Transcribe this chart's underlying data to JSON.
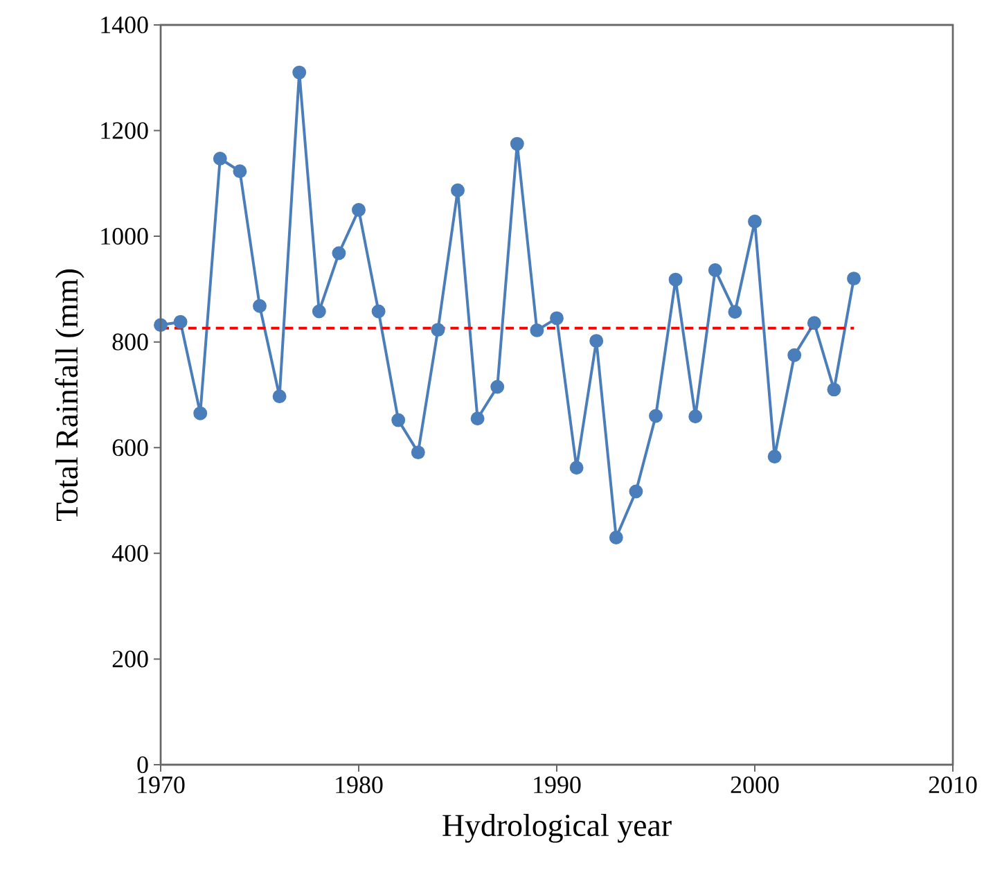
{
  "chart_data": {
    "type": "line",
    "xlabel": "Hydrological year",
    "ylabel": "Total Rainfall (mm)",
    "x": [
      1970,
      1971,
      1972,
      1973,
      1974,
      1975,
      1976,
      1977,
      1978,
      1979,
      1980,
      1981,
      1982,
      1983,
      1984,
      1985,
      1986,
      1987,
      1988,
      1989,
      1990,
      1991,
      1992,
      1993,
      1994,
      1995,
      1996,
      1997,
      1998,
      1999,
      2000,
      2001,
      2002,
      2003,
      2004,
      2005
    ],
    "series": [
      {
        "color": "#4a7ebb",
        "values": [
          832,
          838,
          665,
          1147,
          1123,
          868,
          697,
          1310,
          858,
          968,
          1050,
          858,
          652,
          591,
          823,
          1087,
          655,
          715,
          1175,
          822,
          845,
          562,
          802,
          430,
          517,
          660,
          918,
          659,
          936,
          857,
          1028,
          583,
          775,
          836,
          710,
          920
        ]
      }
    ],
    "xlim": [
      1970,
      2010
    ],
    "xticks": [
      1970,
      1980,
      1990,
      2000,
      2010
    ],
    "ylim": [
      0,
      1400
    ],
    "yticks": [
      0,
      200,
      400,
      600,
      800,
      1000,
      1200,
      1400
    ],
    "ref_lines": [
      {
        "axis": "y",
        "value": 826,
        "color": "#ff0000",
        "line_style": "dashed"
      }
    ],
    "marker": "circle",
    "line_style": "solid",
    "grid": false
  }
}
